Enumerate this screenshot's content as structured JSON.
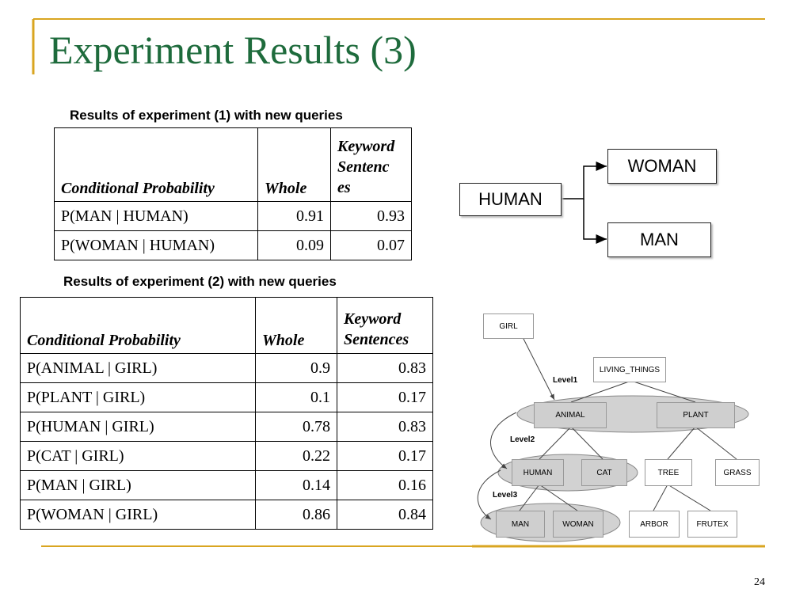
{
  "title": "Experiment Results (3)",
  "table1": {
    "caption": "Results of experiment (1) with new queries",
    "headers": [
      "Conditional Probability",
      "Whole",
      "Keyword Sentenc es"
    ],
    "rows": [
      [
        "P(MAN | HUMAN)",
        "0.91",
        "0.93"
      ],
      [
        "P(WOMAN | HUMAN)",
        "0.09",
        "0.07"
      ]
    ]
  },
  "table2": {
    "caption": "Results of experiment (2) with new queries",
    "headers": [
      "Conditional Probability",
      "Whole",
      "Keyword Sentences"
    ],
    "rows": [
      [
        "P(ANIMAL | GIRL)",
        "0.9",
        "0.83"
      ],
      [
        "P(PLANT | GIRL)",
        "0.1",
        "0.17"
      ],
      [
        "P(HUMAN | GIRL)",
        "0.78",
        "0.83"
      ],
      [
        "P(CAT | GIRL)",
        "0.22",
        "0.17"
      ],
      [
        "P(MAN | GIRL)",
        "0.14",
        "0.16"
      ],
      [
        "P(WOMAN | GIRL)",
        "0.86",
        "0.84"
      ]
    ]
  },
  "diagram1": {
    "root": "HUMAN",
    "top": "WOMAN",
    "bottom": "MAN"
  },
  "diagram2": {
    "girl": "GIRL",
    "living_things": "LIVING_THINGS",
    "animal": "ANIMAL",
    "plant": "PLANT",
    "human": "HUMAN",
    "cat": "CAT",
    "tree": "TREE",
    "grass": "GRASS",
    "man": "MAN",
    "woman": "WOMAN",
    "arbor": "ARBOR",
    "frutex": "FRUTEX",
    "level1": "Level1",
    "level2": "Level2",
    "level3": "Level3"
  },
  "page_number": "24",
  "colors": {
    "title": "#1e6b3c",
    "accent_line": "#d9a520"
  }
}
